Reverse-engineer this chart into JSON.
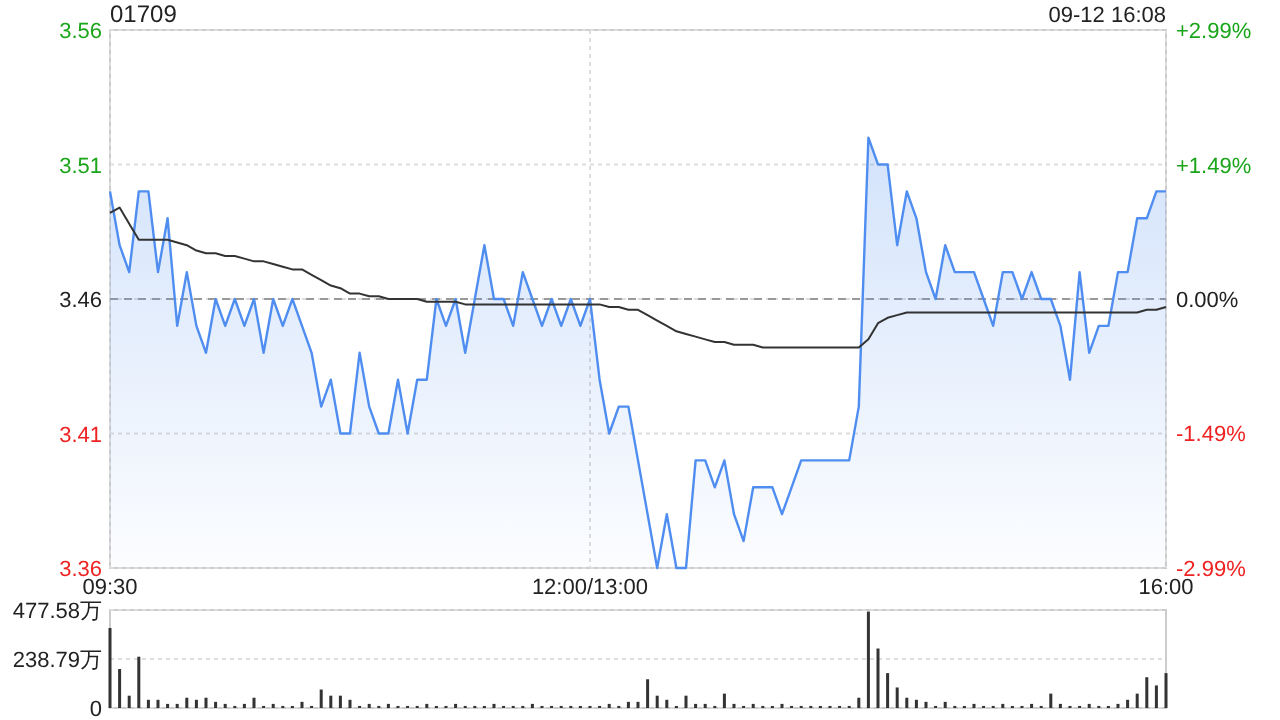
{
  "chart_data": [
    {
      "type": "line",
      "title": "01709",
      "annotations": [
        "09-12 16:08"
      ],
      "categories": [
        "09:30",
        null,
        null,
        null,
        null,
        null,
        null,
        null,
        null,
        null,
        null,
        null,
        null,
        null,
        null,
        null,
        null,
        null,
        null,
        null,
        null,
        null,
        null,
        null,
        null,
        null,
        null,
        null,
        null,
        null,
        null,
        null,
        null,
        null,
        null,
        null,
        null,
        null,
        null,
        null,
        null,
        null,
        null,
        null,
        null,
        null,
        null,
        null,
        null,
        null,
        "12:00/13:00",
        null,
        null,
        null,
        null,
        null,
        null,
        null,
        null,
        null,
        null,
        null,
        null,
        null,
        null,
        null,
        null,
        null,
        null,
        null,
        null,
        null,
        null,
        null,
        null,
        null,
        null,
        null,
        null,
        null,
        null,
        null,
        null,
        null,
        null,
        null,
        null,
        null,
        null,
        null,
        null,
        null,
        null,
        null,
        null,
        null,
        null,
        null,
        null,
        null,
        null,
        null,
        null,
        null,
        null,
        null,
        null,
        null,
        null,
        null,
        "16:00"
      ],
      "ylim": [
        3.36,
        3.56
      ],
      "yticks": [
        3.36,
        3.41,
        3.46,
        3.51,
        3.56
      ],
      "y2lim": [
        -2.99,
        2.99
      ],
      "y2ticks": [
        {
          "value": -2.99,
          "label": "-2.99%"
        },
        {
          "value": -1.49,
          "label": "-1.49%"
        },
        {
          "value": 0,
          "label": "0.00%"
        },
        {
          "value": 1.49,
          "label": "+1.49%"
        },
        {
          "value": 2.99,
          "label": "+2.99%"
        }
      ],
      "grid": true,
      "ref_lines": [
        {
          "axis": "y",
          "value": 3.46,
          "color": "#999999",
          "line_style": "dashed"
        }
      ],
      "series": [
        {
          "type": "area",
          "color": "#4f8ef0",
          "values": [
            3.5,
            3.48,
            3.47,
            3.5,
            3.5,
            3.47,
            3.49,
            3.45,
            3.47,
            3.45,
            3.44,
            3.46,
            3.45,
            3.46,
            3.45,
            3.46,
            3.44,
            3.46,
            3.45,
            3.46,
            3.45,
            3.44,
            3.42,
            3.43,
            3.41,
            3.41,
            3.44,
            3.42,
            3.41,
            3.41,
            3.43,
            3.41,
            3.43,
            3.43,
            3.46,
            3.45,
            3.46,
            3.44,
            3.46,
            3.48,
            3.46,
            3.46,
            3.45,
            3.47,
            3.46,
            3.45,
            3.46,
            3.45,
            3.46,
            3.45,
            3.46,
            3.43,
            3.41,
            3.42,
            3.42,
            3.4,
            3.38,
            3.36,
            3.38,
            3.36,
            3.36,
            3.4,
            3.4,
            3.39,
            3.4,
            3.38,
            3.37,
            3.39,
            3.39,
            3.39,
            3.38,
            3.39,
            3.4,
            3.4,
            3.4,
            3.4,
            3.4,
            3.4,
            3.42,
            3.52,
            3.51,
            3.51,
            3.48,
            3.5,
            3.49,
            3.47,
            3.46,
            3.48,
            3.47,
            3.47,
            3.47,
            3.46,
            3.45,
            3.47,
            3.47,
            3.46,
            3.47,
            3.46,
            3.46,
            3.45,
            3.43,
            3.47,
            3.44,
            3.45,
            3.45,
            3.47,
            3.47,
            3.49,
            3.49,
            3.5,
            3.5
          ]
        },
        {
          "type": "line",
          "color": "#333333",
          "values": [
            3.492,
            3.494,
            3.488,
            3.482,
            3.482,
            3.482,
            3.482,
            3.481,
            3.48,
            3.478,
            3.477,
            3.477,
            3.476,
            3.476,
            3.475,
            3.474,
            3.474,
            3.473,
            3.472,
            3.471,
            3.471,
            3.469,
            3.467,
            3.465,
            3.464,
            3.462,
            3.462,
            3.461,
            3.461,
            3.46,
            3.46,
            3.46,
            3.46,
            3.459,
            3.459,
            3.459,
            3.459,
            3.458,
            3.458,
            3.458,
            3.458,
            3.458,
            3.458,
            3.458,
            3.458,
            3.458,
            3.458,
            3.458,
            3.458,
            3.458,
            3.458,
            3.458,
            3.457,
            3.457,
            3.456,
            3.456,
            3.454,
            3.452,
            3.45,
            3.448,
            3.447,
            3.446,
            3.445,
            3.444,
            3.444,
            3.443,
            3.443,
            3.443,
            3.442,
            3.442,
            3.442,
            3.442,
            3.442,
            3.442,
            3.442,
            3.442,
            3.442,
            3.442,
            3.442,
            3.445,
            3.451,
            3.453,
            3.454,
            3.455,
            3.455,
            3.455,
            3.455,
            3.455,
            3.455,
            3.455,
            3.455,
            3.455,
            3.455,
            3.455,
            3.455,
            3.455,
            3.455,
            3.455,
            3.455,
            3.455,
            3.455,
            3.455,
            3.455,
            3.455,
            3.455,
            3.455,
            3.455,
            3.455,
            3.456,
            3.456,
            3.457
          ]
        }
      ]
    },
    {
      "type": "bar",
      "color": "#333333",
      "categories": [
        null,
        null,
        null,
        null,
        null,
        null,
        null,
        null,
        null,
        null,
        null,
        null,
        null,
        null,
        null,
        null,
        null,
        null,
        null,
        null,
        null,
        null,
        null,
        null,
        null,
        null,
        null,
        null,
        null,
        null,
        null,
        null,
        null,
        null,
        null,
        null,
        null,
        null,
        null,
        null,
        null,
        null,
        null,
        null,
        null,
        null,
        null,
        null,
        null,
        null,
        null,
        null,
        null,
        null,
        null,
        null,
        null,
        null,
        null,
        null,
        null,
        null,
        null,
        null,
        null,
        null,
        null,
        null,
        null,
        null,
        null,
        null,
        null,
        null,
        null,
        null,
        null,
        null,
        null,
        null,
        null,
        null,
        null,
        null,
        null,
        null,
        null,
        null,
        null,
        null,
        null,
        null,
        null,
        null,
        null,
        null,
        null,
        null,
        null,
        null,
        null,
        null,
        null,
        null,
        null,
        null,
        null,
        null,
        null,
        null,
        null
      ],
      "ylim": [
        0,
        477.58
      ],
      "yticks": [
        0,
        {
          "value": 238.79,
          "label": "238.79万"
        },
        {
          "value": 477.58,
          "label": "477.58万"
        }
      ],
      "grid": "y",
      "tick_labels": "y",
      "values": [
        390,
        190,
        60,
        250,
        40,
        40,
        20,
        20,
        50,
        40,
        50,
        30,
        20,
        10,
        20,
        50,
        10,
        20,
        10,
        10,
        30,
        10,
        90,
        60,
        60,
        40,
        10,
        20,
        10,
        20,
        10,
        10,
        10,
        20,
        10,
        10,
        20,
        10,
        10,
        10,
        20,
        10,
        10,
        10,
        20,
        10,
        10,
        10,
        10,
        10,
        10,
        10,
        20,
        10,
        30,
        30,
        140,
        60,
        40,
        10,
        60,
        20,
        20,
        10,
        70,
        20,
        10,
        20,
        10,
        10,
        20,
        10,
        10,
        10,
        10,
        10,
        10,
        10,
        50,
        470,
        290,
        170,
        100,
        50,
        40,
        30,
        10,
        30,
        10,
        10,
        20,
        10,
        10,
        20,
        10,
        10,
        20,
        10,
        70,
        20,
        10,
        10,
        20,
        10,
        10,
        20,
        40,
        70,
        150,
        110,
        170
      ]
    }
  ]
}
